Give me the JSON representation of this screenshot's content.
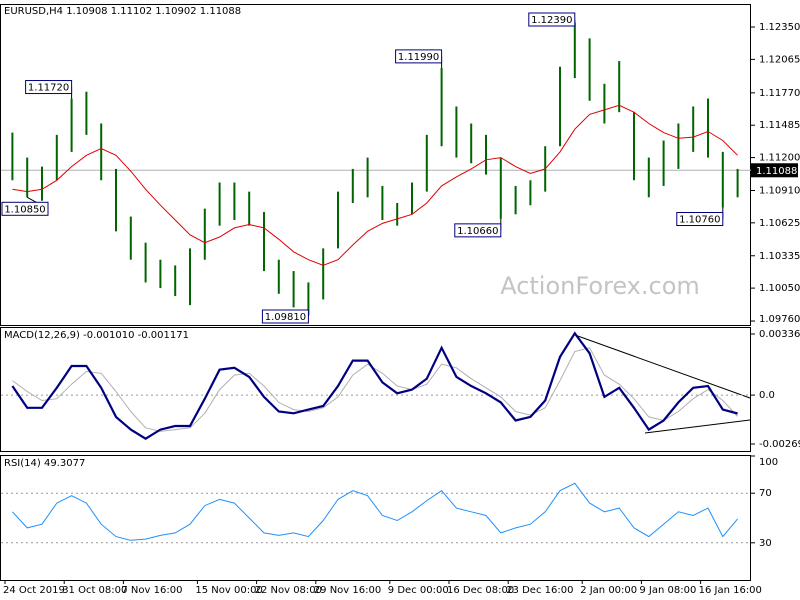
{
  "chart_data": [
    {
      "type": "hilo",
      "title": "EURUSD,H4  1.10908 1.11102 1.10902 1.11088",
      "color": "#006400",
      "high": [
        1.1142,
        1.112,
        1.1112,
        1.114,
        1.1172,
        1.1178,
        1.115,
        1.111,
        1.1068,
        1.1045,
        1.103,
        1.1025,
        1.104,
        1.1075,
        1.1098,
        1.1098,
        1.109,
        1.1072,
        1.103,
        1.102,
        1.101,
        1.104,
        1.109,
        1.111,
        1.112,
        1.1095,
        1.108,
        1.1098,
        1.114,
        1.1199,
        1.1165,
        1.115,
        1.114,
        1.112,
        1.1095,
        1.11,
        1.113,
        1.12,
        1.1239,
        1.1225,
        1.1185,
        1.1205,
        1.116,
        1.112,
        1.1135,
        1.115,
        1.1165,
        1.1172,
        1.1125,
        1.111
      ],
      "low": [
        1.11,
        1.1085,
        1.1082,
        1.11,
        1.1125,
        1.114,
        1.11,
        1.1055,
        1.103,
        1.101,
        1.1005,
        1.0998,
        1.099,
        1.103,
        1.106,
        1.1065,
        1.106,
        1.102,
        1.1,
        1.0988,
        1.0981,
        1.0995,
        1.104,
        1.108,
        1.1085,
        1.1065,
        1.106,
        1.107,
        1.109,
        1.113,
        1.112,
        1.1115,
        1.1105,
        1.1066,
        1.107,
        1.1078,
        1.109,
        1.113,
        1.119,
        1.117,
        1.115,
        1.116,
        1.11,
        1.1085,
        1.1095,
        1.111,
        1.1125,
        1.112,
        1.1076,
        1.1085
      ],
      "moving_average": [
        1.1092,
        1.109,
        1.1092,
        1.11,
        1.1112,
        1.1122,
        1.1128,
        1.1122,
        1.1108,
        1.1092,
        1.1078,
        1.1065,
        1.1052,
        1.1045,
        1.105,
        1.1058,
        1.1061,
        1.1058,
        1.1048,
        1.1037,
        1.103,
        1.1025,
        1.103,
        1.1043,
        1.1055,
        1.1062,
        1.1066,
        1.107,
        1.108,
        1.1095,
        1.1103,
        1.111,
        1.1118,
        1.112,
        1.1112,
        1.1106,
        1.111,
        1.1125,
        1.1145,
        1.1158,
        1.1162,
        1.1166,
        1.116,
        1.115,
        1.1142,
        1.1137,
        1.1138,
        1.1143,
        1.1135,
        1.1122
      ],
      "moving_average_color": "#e00000",
      "last": 1.11088,
      "annotations": [
        {
          "value": 1.1239,
          "label": "1.12390"
        },
        {
          "value": 1.1199,
          "label": "1.11990"
        },
        {
          "value": 1.1172,
          "label": "1.11720"
        },
        {
          "value": 1.1066,
          "label": "1.10660"
        },
        {
          "value": 1.1085,
          "label": "1.10850"
        },
        {
          "value": 1.1076,
          "label": "1.10760"
        },
        {
          "value": 1.0981,
          "label": "1.09810"
        }
      ],
      "watermark": "ActionForex.com",
      "ylim": [
        1.09725,
        1.12544
      ],
      "yticks": [
        {
          "value": 1.1235,
          "label": "1.12350"
        },
        1.12065,
        {
          "value": 1.1177,
          "label": "1.11770"
        },
        1.11485,
        {
          "value": 1.112,
          "label": "1.11200"
        },
        {
          "value": 1.1091,
          "label": "1.10910"
        },
        1.10625,
        1.10335,
        {
          "value": 1.1005,
          "label": "1.10050"
        },
        {
          "value": 1.0976,
          "label": "1.09760"
        }
      ]
    },
    {
      "type": "macd",
      "title": "MACD(12,26,9) -0.001010 -0.001171",
      "macd": [
        0.0005,
        -0.0007,
        -0.0007,
        0.0004,
        0.0016,
        0.0016,
        0.0004,
        -0.0012,
        -0.0019,
        -0.0024,
        -0.0019,
        -0.0017,
        -0.0017,
        -0.0002,
        0.0014,
        0.0015,
        0.001,
        -0.0001,
        -0.0009,
        -0.001,
        -0.0008,
        -0.0006,
        0.0005,
        0.0019,
        0.0019,
        0.0007,
        0.0001,
        0.0003,
        0.0009,
        0.0026,
        0.001,
        0.0005,
        0.0001,
        -0.0004,
        -0.0014,
        -0.0012,
        -0.0003,
        0.0021,
        0.0034,
        0.0023,
        -0.0001,
        0.0004,
        -0.0007,
        -0.0019,
        -0.0014,
        -0.0004,
        0.0004,
        0.0005,
        -0.0008,
        -0.00101
      ],
      "signal": [
        0.0008,
        0.0002,
        -0.0003,
        -0.0002,
        0.0006,
        0.0013,
        0.0012,
        0.0002,
        -0.0009,
        -0.0018,
        -0.002,
        -0.0019,
        -0.0018,
        -0.001,
        0.0003,
        0.0011,
        0.0012,
        0.0005,
        -0.0004,
        -0.0008,
        -0.0009,
        -0.0007,
        -0.0001,
        0.0011,
        0.0017,
        0.0012,
        0.0005,
        0.0003,
        0.0006,
        0.0017,
        0.0015,
        0.0009,
        0.0004,
        -0.0001,
        -0.0009,
        -0.0011,
        -0.0007,
        0.0008,
        0.0024,
        0.0026,
        0.0011,
        0.0006,
        -0.0002,
        -0.0012,
        -0.0014,
        -0.0009,
        -0.0002,
        0.0003,
        -0.0003,
        -0.001171
      ],
      "macd_color": "#000080",
      "signal_color": "#b0b0b0",
      "ylim": [
        -0.003076,
        0.003747
      ],
      "yticks": [
        0.003362,
        {
          "value": 0,
          "label": "0.0"
        },
        -0.002691
      ]
    },
    {
      "type": "line",
      "title": "RSI(14) 49.3077",
      "color": "#1e90ff",
      "values": [
        55,
        42,
        45,
        62,
        68,
        62,
        45,
        35,
        32,
        33,
        36,
        38,
        45,
        60,
        65,
        62,
        50,
        38,
        36,
        38,
        35,
        48,
        65,
        72,
        68,
        52,
        48,
        55,
        64,
        72,
        58,
        55,
        52,
        38,
        42,
        45,
        55,
        72,
        78,
        62,
        55,
        58,
        42,
        35,
        45,
        55,
        52,
        58,
        35,
        49.3077
      ],
      "ylim": [
        0,
        100
      ],
      "yticks": [
        100,
        70,
        30
      ],
      "grid": true,
      "categories": [
        "24 Oct 2019",
        null,
        null,
        null,
        "31 Oct 08:00",
        null,
        null,
        null,
        "7 Nov 16:00",
        null,
        null,
        null,
        null,
        "15 Nov 00:00",
        null,
        null,
        null,
        "22 Nov 08:00",
        null,
        null,
        null,
        "29 Nov 16:00",
        null,
        null,
        null,
        null,
        "9 Dec 00:00",
        null,
        null,
        null,
        "16 Dec 08:00",
        null,
        null,
        null,
        "23 Dec 16:00",
        null,
        null,
        null,
        null,
        "2 Jan 00:00",
        null,
        null,
        null,
        "9 Jan 08:00",
        null,
        null,
        null,
        "16 Jan 16:00",
        null,
        null
      ]
    }
  ]
}
